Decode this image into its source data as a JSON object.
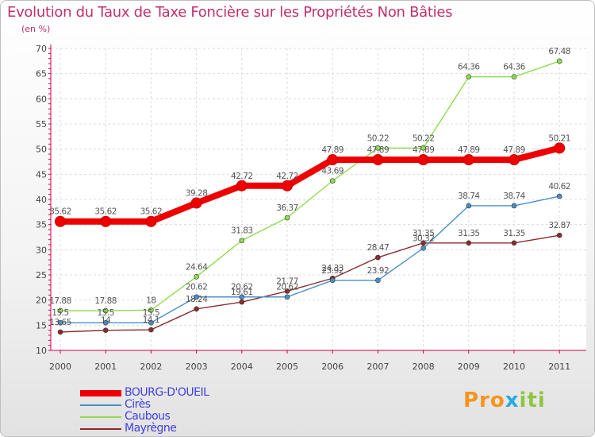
{
  "header": {
    "title": "Evolution du Taux de Taxe Foncière sur les Propriétés Non Bâties",
    "subtitle": "(en %)"
  },
  "colors": {
    "title": "#c0306e",
    "axis": "#cc0044",
    "legend_text": "#4040e0"
  },
  "logo": {
    "part1": "Pro",
    "part2": "x",
    "part3": "iti"
  },
  "chart_data": {
    "type": "line",
    "title": "Evolution du Taux de Taxe Foncière sur les Propriétés Non Bâties",
    "ylabel": "(en %)",
    "xlabel": "",
    "ylim": [
      10,
      70
    ],
    "yticks": [
      10,
      15,
      20,
      25,
      30,
      35,
      40,
      45,
      50,
      55,
      60,
      65,
      70
    ],
    "grid": true,
    "categories": [
      "2000",
      "2001",
      "2002",
      "2003",
      "2004",
      "2005",
      "2006",
      "2007",
      "2008",
      "2009",
      "2010",
      "2011"
    ],
    "legend_position": "bottom-left",
    "series": [
      {
        "name": "Mayrègne",
        "color": "#8b2c2c",
        "values": [
          13.65,
          14,
          14.1,
          18.24,
          19.61,
          21.77,
          24.33,
          28.47,
          31.35,
          31.35,
          31.35,
          32.87
        ],
        "labels": [
          "13.65",
          "14",
          "14.1",
          "18.24",
          "19.61",
          "21.77",
          "24.33",
          "28.47",
          "31.35",
          "31.35",
          "31.35",
          "32.87"
        ]
      },
      {
        "name": "Cirès",
        "color": "#4a8fc8",
        "values": [
          15.5,
          15.5,
          15.5,
          20.62,
          20.62,
          20.62,
          23.92,
          23.92,
          30.32,
          38.74,
          38.74,
          40.62
        ],
        "labels": [
          "15.5",
          "15.5",
          "15.5",
          "20.62",
          "20.62",
          "20.62",
          "23.92",
          "23.92",
          "30.32",
          "38.74",
          "38.74",
          "40.62"
        ]
      },
      {
        "name": "Caubous",
        "color": "#8fdc4f",
        "values": [
          17.88,
          17.88,
          18,
          24.64,
          31.83,
          36.37,
          43.69,
          50.22,
          50.22,
          64.36,
          64.36,
          67.48
        ],
        "labels": [
          "17.88",
          "17.88",
          "18",
          "24.64",
          "31.83",
          "36.37",
          "43.69",
          "50.22",
          "50.22",
          "64.36",
          "64.36",
          "67.48"
        ]
      },
      {
        "name": "BOURG-D'OUEIL",
        "color": "#ee0000",
        "values": [
          35.62,
          35.62,
          35.62,
          39.28,
          42.72,
          42.72,
          47.89,
          47.89,
          47.89,
          47.89,
          47.89,
          50.21
        ],
        "labels": [
          "35.62",
          "35.62",
          "35.62",
          "39.28",
          "42.72",
          "42.72",
          "47.89",
          "47.89",
          "47.89",
          "47.89",
          "47.89",
          "50.21"
        ]
      }
    ],
    "legend": [
      "BOURG-D'OUEIL",
      "Cirès",
      "Caubous",
      "Mayrègne"
    ]
  }
}
